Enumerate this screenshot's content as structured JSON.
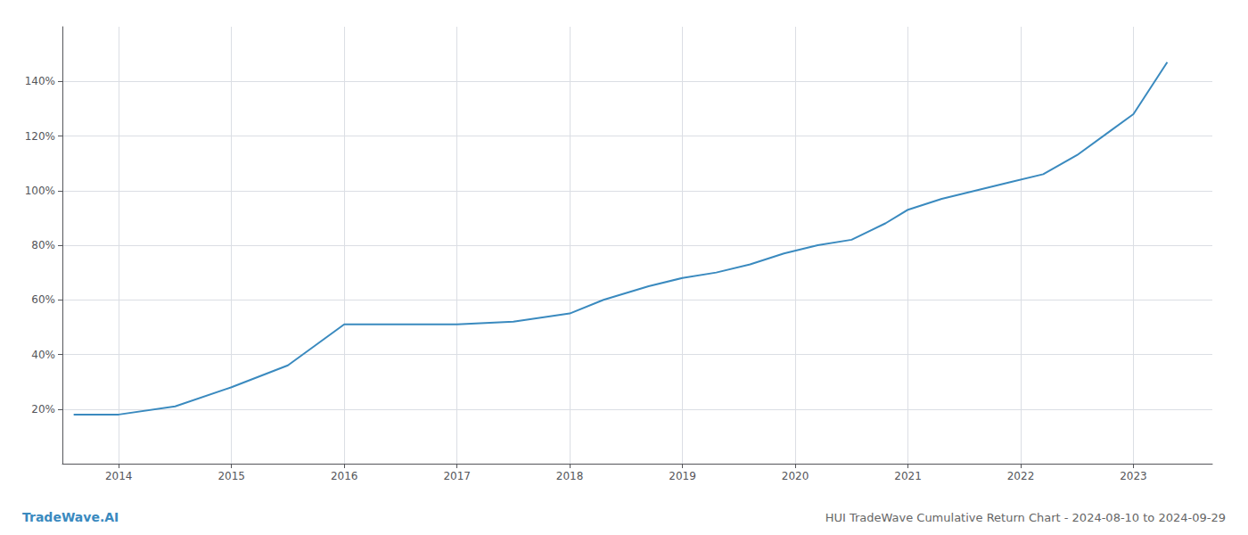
{
  "chart_data": {
    "type": "line",
    "title": "HUI TradeWave Cumulative Return Chart - 2024-08-10 to 2024-09-29",
    "annotations": [
      "TradeWave.AI"
    ],
    "x": [
      2013.6,
      2014.0,
      2014.5,
      2015.0,
      2015.5,
      2016.0,
      2016.5,
      2017.0,
      2017.5,
      2018.0,
      2018.3,
      2018.7,
      2019.0,
      2019.3,
      2019.6,
      2019.9,
      2020.2,
      2020.5,
      2020.8,
      2021.0,
      2021.3,
      2021.6,
      2021.9,
      2022.2,
      2022.5,
      2022.8,
      2023.0,
      2023.3
    ],
    "values": [
      18,
      18,
      21,
      28,
      36,
      51,
      51,
      51,
      52,
      55,
      60,
      65,
      68,
      70,
      73,
      77,
      80,
      82,
      88,
      93,
      97,
      100,
      103,
      106,
      113,
      122,
      128,
      147
    ],
    "color": "#3a8abf",
    "xlim": [
      2013.5,
      2023.7
    ],
    "xticks": [
      2014,
      2015,
      2016,
      2017,
      2018,
      2019,
      2020,
      2021,
      2022,
      2023
    ],
    "ylim": [
      0,
      160
    ],
    "yticks": [
      {
        "value": 20,
        "label": "20%"
      },
      {
        "value": 40,
        "label": "40%"
      },
      {
        "value": 60,
        "label": "60%"
      },
      {
        "value": 80,
        "label": "80%"
      },
      {
        "value": 100,
        "label": "100%"
      },
      {
        "value": 120,
        "label": "120%"
      },
      {
        "value": 140,
        "label": "140%"
      }
    ],
    "grid": true
  }
}
